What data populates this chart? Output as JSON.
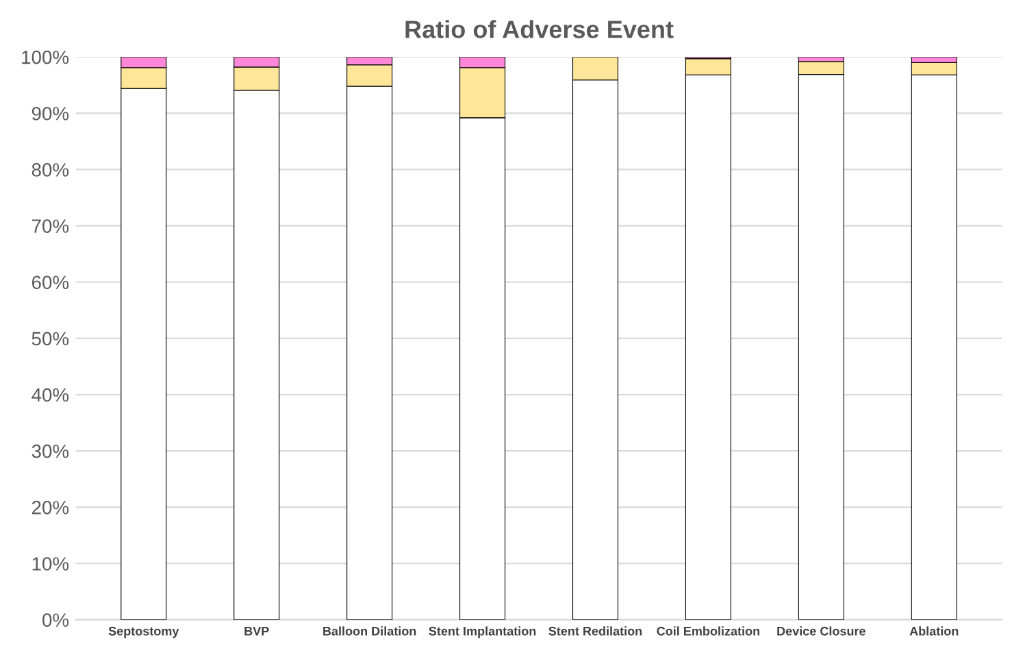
{
  "chart_data": {
    "type": "bar",
    "title": "Ratio of Adverse Event",
    "stacked": true,
    "categories": [
      "Septostomy",
      "BVP",
      "Balloon Dilation",
      "Stent Implantation",
      "Stent Redilation",
      "Coil Embolization",
      "Device Closure",
      "Ablation"
    ],
    "series": [
      {
        "color": "#ffffff",
        "values": [
          94.4,
          94.1,
          94.8,
          89.2,
          95.9,
          96.8,
          96.9,
          96.8
        ]
      },
      {
        "color": "#ffe699",
        "values": [
          3.7,
          4.1,
          3.8,
          8.9,
          4.1,
          2.9,
          2.3,
          2.2
        ]
      },
      {
        "color": "#ff88d8",
        "values": [
          1.9,
          1.8,
          1.4,
          1.9,
          null,
          0.3,
          0.8,
          1.0
        ]
      }
    ],
    "ylim": [
      0,
      100
    ],
    "yticks": [
      {
        "value": 0,
        "label": "0%"
      },
      {
        "value": 10,
        "label": "10%"
      },
      {
        "value": 20,
        "label": "20%"
      },
      {
        "value": 30,
        "label": "30%"
      },
      {
        "value": 40,
        "label": "40%"
      },
      {
        "value": 50,
        "label": "50%"
      },
      {
        "value": 60,
        "label": "60%"
      },
      {
        "value": 70,
        "label": "70%"
      },
      {
        "value": 80,
        "label": "80%"
      },
      {
        "value": 90,
        "label": "90%"
      },
      {
        "value": 100,
        "label": "100%"
      }
    ],
    "grid": "y",
    "legend": false
  }
}
